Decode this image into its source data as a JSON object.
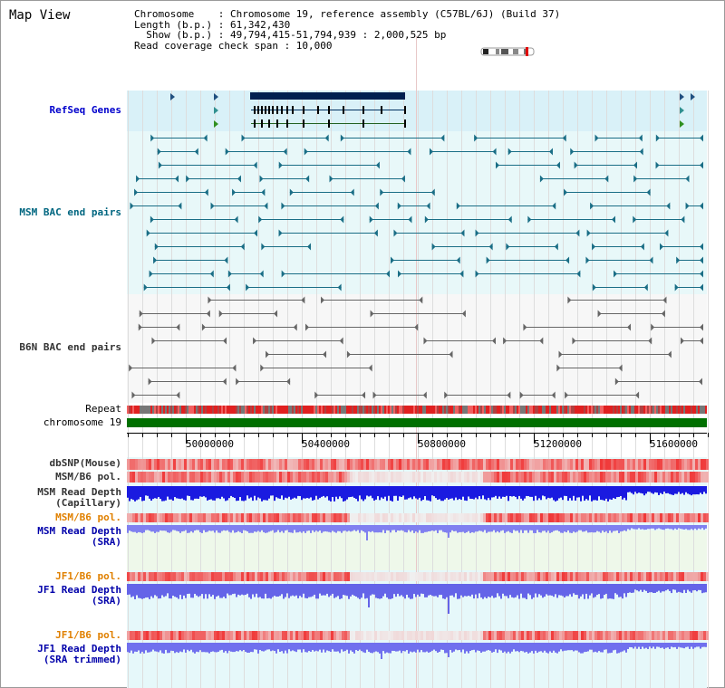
{
  "title": "Map View",
  "info": {
    "chromosome": "Chromosome    : Chromosome 19, reference assembly (C57BL/6J) (Build 37)",
    "length": "Length (b.p.) : 61,342,430",
    "show": "  Show (b.p.) : 49,794,415-51,794,939 : 2,000,525 bp",
    "coverage": "Read coverage check span : 10,000"
  },
  "tracks": {
    "refseq": {
      "label": "RefSeq Genes",
      "color": "#0000cc"
    },
    "msm_bac": {
      "label": "MSM BAC end pairs",
      "color": "#006680"
    },
    "b6n_bac": {
      "label": "B6N BAC end pairs",
      "color": "#333333"
    },
    "repeat": {
      "label": "Repeat"
    },
    "chromosome": {
      "label": "chromosome 19"
    },
    "dbsnp": {
      "label": "dbSNP(Mouse)",
      "color": "#333333"
    },
    "msm_pol1": {
      "label": "MSM/B6 pol.",
      "color": "#333333"
    },
    "msm_depth_cap": {
      "label": "MSM Read Depth\n(Capillary)",
      "color": "#333333"
    },
    "msm_pol2": {
      "label": "MSM/B6 pol.",
      "color": "#e08000"
    },
    "msm_depth_sra": {
      "label": "MSM Read Depth\n(SRA)",
      "color": "#0000aa"
    },
    "jf1_pol1": {
      "label": "JF1/B6 pol.",
      "color": "#e08000"
    },
    "jf1_depth_sra": {
      "label": "JF1 Read Depth\n(SRA)",
      "color": "#0000aa"
    },
    "jf1_pol2": {
      "label": "JF1/B6 pol.",
      "color": "#e08000"
    },
    "jf1_depth_trim": {
      "label": "JF1 Read Depth\n(SRA trimmed)",
      "color": "#0000aa"
    }
  },
  "axis": {
    "ticks": [
      "50000000",
      "50400000",
      "50800000",
      "51200000",
      "51600000"
    ]
  }
}
